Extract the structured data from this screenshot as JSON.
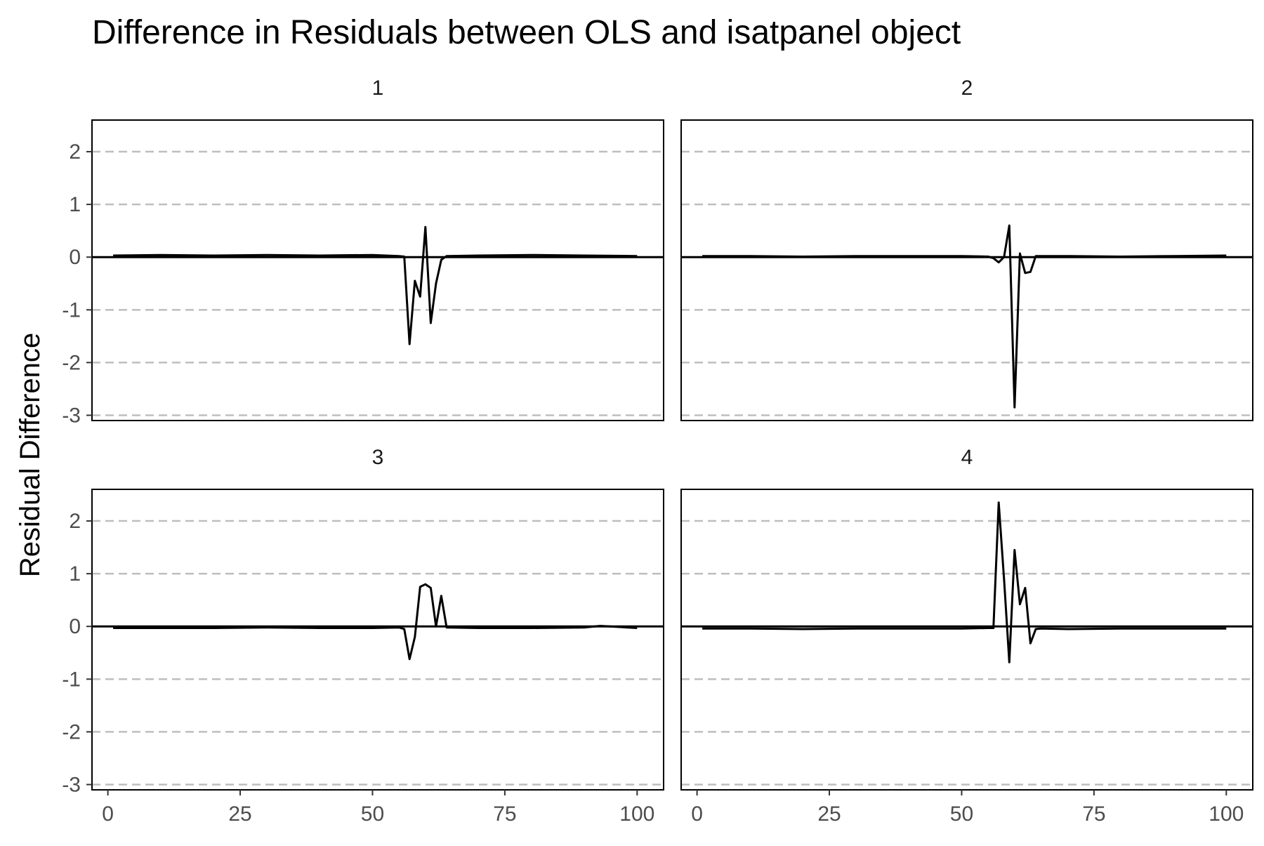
{
  "chart_data": {
    "type": "line",
    "title": "Difference in Residuals between OLS and isatpanel object",
    "xlabel": "",
    "ylabel": "Residual Difference",
    "xlim": [
      -3,
      105
    ],
    "ylim": [
      -3.1,
      2.6
    ],
    "x_ticks": [
      0,
      25,
      50,
      75,
      100
    ],
    "y_ticks": [
      2,
      1,
      0,
      -1,
      -2,
      -3
    ],
    "grid": "dashed horizontal major gridlines",
    "zero_line": 0,
    "panels": [
      {
        "label": "1",
        "series": [
          {
            "x": [
              1,
              10,
              20,
              30,
              40,
              50,
              55,
              56,
              57,
              58,
              59,
              60,
              61,
              62,
              63,
              64,
              70,
              80,
              90,
              100
            ],
            "y": [
              0.03,
              0.04,
              0.03,
              0.04,
              0.03,
              0.04,
              0.02,
              0.01,
              -1.65,
              -0.45,
              -0.75,
              0.57,
              -1.25,
              -0.5,
              -0.05,
              0.02,
              0.03,
              0.04,
              0.03,
              0.02
            ]
          }
        ]
      },
      {
        "label": "2",
        "series": [
          {
            "x": [
              1,
              10,
              20,
              30,
              40,
              50,
              55,
              56,
              57,
              58,
              59,
              60,
              61,
              62,
              63,
              64,
              70,
              80,
              90,
              100
            ],
            "y": [
              0.02,
              0.02,
              0.01,
              0.02,
              0.02,
              0.02,
              0.01,
              -0.02,
              -0.1,
              0.0,
              0.6,
              -2.85,
              0.07,
              -0.3,
              -0.28,
              0.02,
              0.02,
              0.01,
              0.02,
              0.03
            ]
          }
        ]
      },
      {
        "label": "3",
        "series": [
          {
            "x": [
              1,
              10,
              20,
              30,
              40,
              50,
              55,
              56,
              57,
              58,
              59,
              60,
              61,
              62,
              63,
              64,
              70,
              80,
              90,
              93,
              100
            ],
            "y": [
              -0.03,
              -0.03,
              -0.03,
              -0.02,
              -0.03,
              -0.03,
              -0.02,
              -0.05,
              -0.62,
              -0.2,
              0.75,
              0.8,
              0.73,
              0.0,
              0.58,
              -0.02,
              -0.03,
              -0.03,
              -0.02,
              0.01,
              -0.03
            ]
          }
        ]
      },
      {
        "label": "4",
        "series": [
          {
            "x": [
              1,
              10,
              20,
              30,
              40,
              50,
              55,
              56,
              57,
              58,
              59,
              60,
              61,
              62,
              63,
              64,
              65,
              70,
              80,
              90,
              100
            ],
            "y": [
              -0.04,
              -0.04,
              -0.05,
              -0.04,
              -0.04,
              -0.04,
              -0.03,
              -0.03,
              2.35,
              0.9,
              -0.68,
              1.45,
              0.42,
              0.73,
              -0.32,
              -0.05,
              -0.04,
              -0.05,
              -0.04,
              -0.04,
              -0.04
            ]
          }
        ]
      }
    ]
  }
}
